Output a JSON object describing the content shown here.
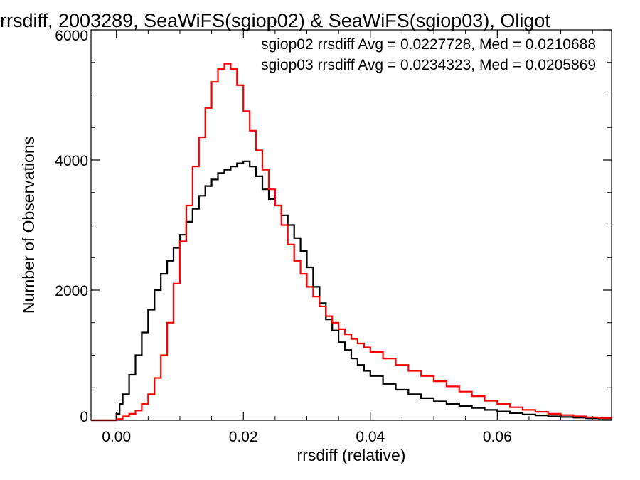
{
  "chart_data": {
    "type": "line",
    "title": "rrsdiff, 2003289, SeaWiFS(sgiop02) & SeaWiFS(sgiop03), Oligot",
    "xlabel": "rrsdiff (relative)",
    "ylabel": "Number of Observations",
    "xlim": [
      -0.004,
      0.078
    ],
    "ylim": [
      0,
      6000
    ],
    "x_ticks": [
      0.0,
      0.02,
      0.04,
      0.06
    ],
    "x_tick_labels": [
      "0.00",
      "0.02",
      "0.04",
      "0.06"
    ],
    "y_ticks": [
      0,
      2000,
      4000,
      6000
    ],
    "y_tick_labels": [
      "0",
      "2000",
      "4000",
      "6000"
    ],
    "grid": false,
    "legend_position": "top-right",
    "annotations": [
      {
        "text": "sgiop02 rrsdiff Avg = 0.0227728, Med = 0.0210688",
        "color": "#000000"
      },
      {
        "text": "sgiop03 rrsdiff Avg = 0.0234323, Med = 0.0205869",
        "color": "#ff0000"
      }
    ],
    "series": [
      {
        "name": "sgiop02",
        "color": "#000000",
        "style": "step",
        "x": [
          -0.004,
          -0.0005,
          0.0,
          0.0005,
          0.001,
          0.002,
          0.003,
          0.004,
          0.005,
          0.006,
          0.007,
          0.008,
          0.009,
          0.01,
          0.011,
          0.012,
          0.013,
          0.014,
          0.015,
          0.016,
          0.017,
          0.018,
          0.019,
          0.02,
          0.021,
          0.022,
          0.023,
          0.024,
          0.025,
          0.026,
          0.027,
          0.028,
          0.029,
          0.03,
          0.031,
          0.032,
          0.033,
          0.034,
          0.035,
          0.036,
          0.037,
          0.038,
          0.039,
          0.04,
          0.042,
          0.044,
          0.046,
          0.048,
          0.05,
          0.052,
          0.054,
          0.056,
          0.058,
          0.06,
          0.062,
          0.064,
          0.066,
          0.068,
          0.07,
          0.072,
          0.074,
          0.076,
          0.078
        ],
        "values": [
          0,
          0,
          100,
          250,
          400,
          700,
          1000,
          1350,
          1700,
          2000,
          2250,
          2450,
          2650,
          2850,
          3050,
          3250,
          3450,
          3600,
          3700,
          3800,
          3850,
          3900,
          3950,
          3980,
          3900,
          3750,
          3550,
          3400,
          3300,
          3150,
          3000,
          2800,
          2600,
          2350,
          2050,
          1800,
          1550,
          1380,
          1200,
          1080,
          950,
          850,
          760,
          680,
          560,
          470,
          400,
          340,
          290,
          250,
          220,
          190,
          160,
          135,
          110,
          90,
          75,
          60,
          50,
          40,
          30,
          25,
          20
        ]
      },
      {
        "name": "sgiop03",
        "color": "#ff0000",
        "style": "step",
        "x": [
          -0.004,
          -0.0005,
          0.0,
          0.001,
          0.002,
          0.003,
          0.004,
          0.005,
          0.006,
          0.007,
          0.008,
          0.009,
          0.01,
          0.011,
          0.012,
          0.013,
          0.014,
          0.015,
          0.016,
          0.017,
          0.018,
          0.019,
          0.02,
          0.021,
          0.022,
          0.023,
          0.024,
          0.025,
          0.026,
          0.027,
          0.028,
          0.029,
          0.03,
          0.031,
          0.032,
          0.033,
          0.034,
          0.035,
          0.036,
          0.037,
          0.038,
          0.039,
          0.04,
          0.042,
          0.044,
          0.046,
          0.048,
          0.05,
          0.052,
          0.054,
          0.056,
          0.058,
          0.06,
          0.062,
          0.064,
          0.066,
          0.068,
          0.07,
          0.072,
          0.074,
          0.076,
          0.078
        ],
        "values": [
          0,
          0,
          20,
          60,
          100,
          150,
          250,
          400,
          650,
          1000,
          1500,
          2100,
          2750,
          3300,
          3900,
          4350,
          4800,
          5200,
          5400,
          5480,
          5400,
          5150,
          4750,
          4450,
          4150,
          3850,
          3550,
          3300,
          3000,
          2700,
          2450,
          2250,
          2050,
          1900,
          1750,
          1600,
          1500,
          1400,
          1320,
          1250,
          1180,
          1120,
          1050,
          950,
          850,
          760,
          680,
          600,
          520,
          440,
          370,
          300,
          250,
          200,
          160,
          130,
          100,
          80,
          60,
          45,
          35,
          25
        ]
      }
    ]
  }
}
